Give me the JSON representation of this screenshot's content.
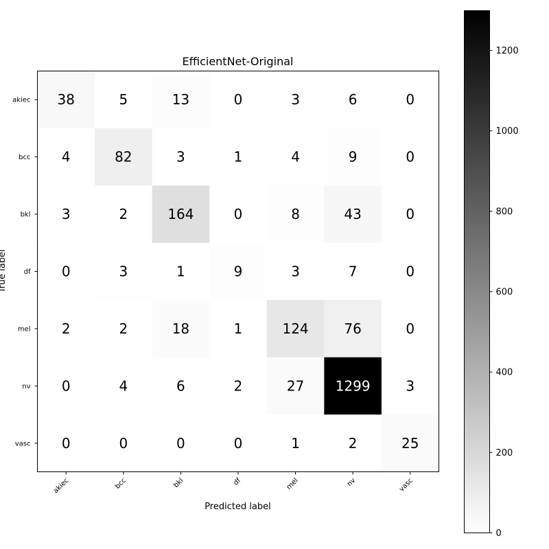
{
  "chart_data": {
    "type": "heatmap",
    "title": "EfficientNet-Original",
    "xlabel": "Predicted label",
    "ylabel": "True label",
    "x_categories": [
      "akiec",
      "bcc",
      "bkl",
      "df",
      "mel",
      "nv",
      "vasc"
    ],
    "y_categories": [
      "akiec",
      "bcc",
      "bkl",
      "df",
      "mel",
      "nv",
      "vasc"
    ],
    "values": [
      [
        38,
        5,
        13,
        0,
        3,
        6,
        0
      ],
      [
        4,
        82,
        3,
        1,
        4,
        9,
        0
      ],
      [
        3,
        2,
        164,
        0,
        8,
        43,
        0
      ],
      [
        0,
        3,
        1,
        9,
        3,
        7,
        0
      ],
      [
        2,
        2,
        18,
        1,
        124,
        76,
        0
      ],
      [
        0,
        4,
        6,
        2,
        27,
        1299,
        3
      ],
      [
        0,
        0,
        0,
        0,
        1,
        2,
        25
      ]
    ],
    "colormap": "Greys",
    "color_range": [
      0,
      1299
    ],
    "colorbar_ticks": [
      0,
      200,
      400,
      600,
      800,
      1000,
      1200
    ],
    "grid": false
  }
}
